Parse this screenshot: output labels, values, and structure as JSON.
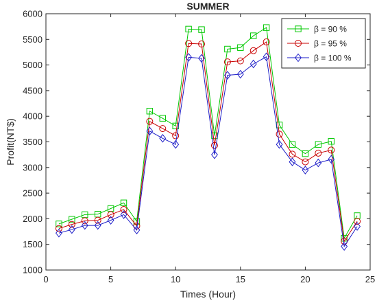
{
  "chart_data": {
    "type": "line",
    "title": "SUMMER",
    "xlabel": "Times (Hour)",
    "ylabel": "Profit(NT$)",
    "xlim": [
      0,
      25
    ],
    "ylim": [
      1000,
      6000
    ],
    "xticks": [
      0,
      5,
      10,
      15,
      20,
      25
    ],
    "yticks": [
      1000,
      1500,
      2000,
      2500,
      3000,
      3500,
      4000,
      4500,
      5000,
      5500,
      6000
    ],
    "grid": false,
    "legend_position": "top-right",
    "x": [
      1,
      2,
      3,
      4,
      5,
      6,
      7,
      8,
      9,
      10,
      11,
      12,
      13,
      14,
      15,
      16,
      17,
      18,
      19,
      20,
      21,
      22,
      23,
      24
    ],
    "series": [
      {
        "name": "β = 90 %",
        "color": "#00c800",
        "marker": "square",
        "values": [
          1900,
          1990,
          2080,
          2090,
          2200,
          2310,
          1950,
          4100,
          3960,
          3810,
          5700,
          5690,
          3620,
          5310,
          5340,
          5570,
          5730,
          3830,
          3450,
          3270,
          3450,
          3510,
          1620,
          2060
        ]
      },
      {
        "name": "β = 95 %",
        "color": "#c80000",
        "marker": "circle",
        "values": [
          1810,
          1890,
          1960,
          1970,
          2080,
          2180,
          1860,
          3900,
          3760,
          3620,
          5420,
          5410,
          3430,
          5060,
          5080,
          5280,
          5450,
          3650,
          3260,
          3110,
          3280,
          3340,
          1560,
          1950
        ]
      },
      {
        "name": "β = 100 %",
        "color": "#1e1ec8",
        "marker": "diamond",
        "values": [
          1720,
          1790,
          1870,
          1870,
          1970,
          2080,
          1780,
          3710,
          3570,
          3450,
          5150,
          5130,
          3250,
          4800,
          4820,
          5020,
          5160,
          3450,
          3110,
          2950,
          3090,
          3160,
          1460,
          1850
        ]
      }
    ]
  }
}
